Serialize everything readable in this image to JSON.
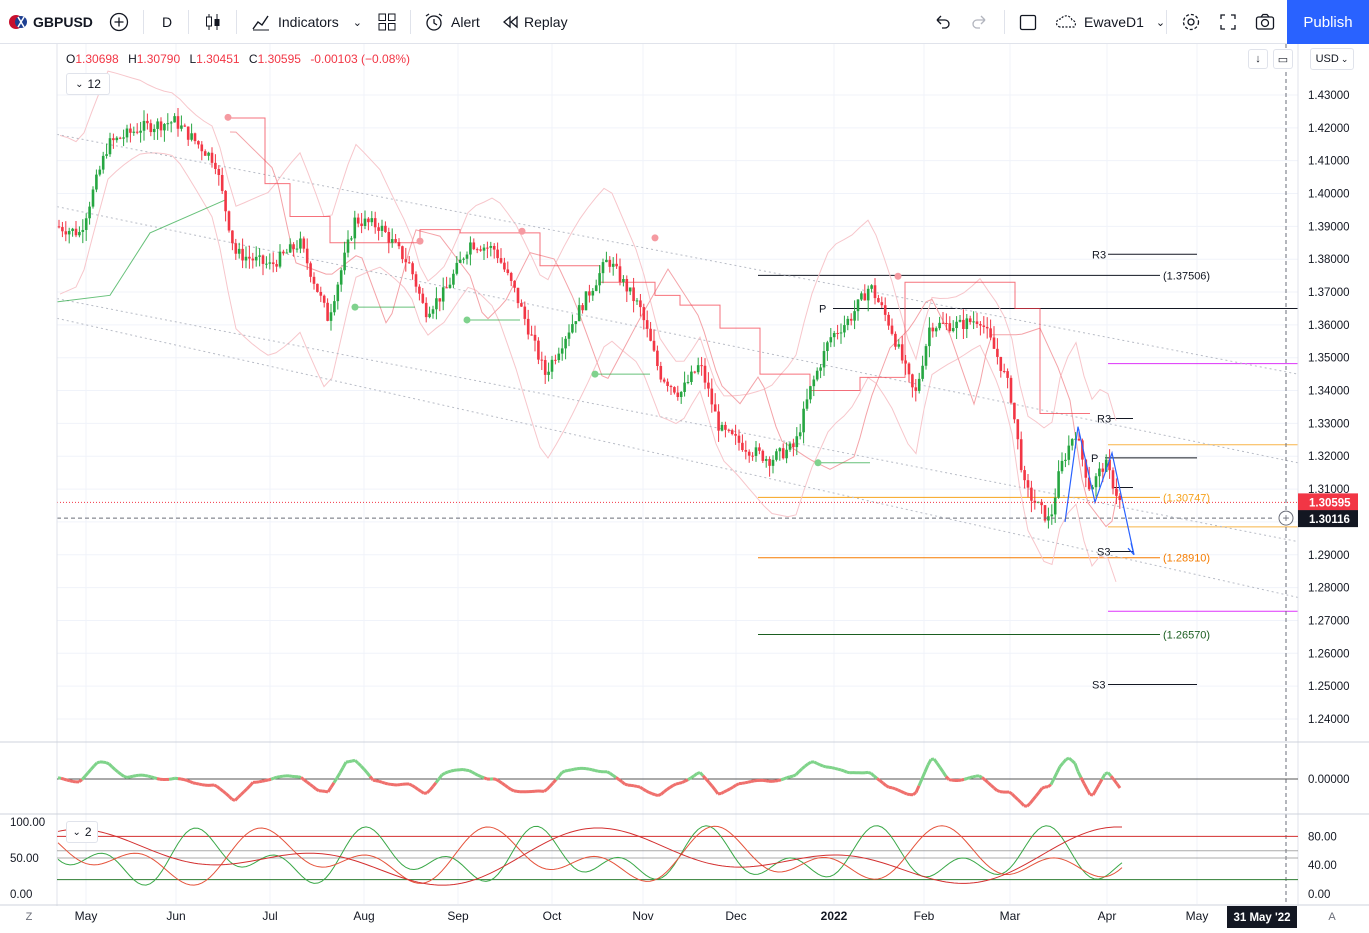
{
  "toolbar": {
    "symbol": "GBPUSD",
    "interval": "D",
    "indicators_label": "Indicators",
    "alert_label": "Alert",
    "replay_label": "Replay",
    "layout_name": "EwaveD1",
    "publish_label": "Publish"
  },
  "legend": {
    "open_label": "O",
    "open": "1.30698",
    "high_label": "H",
    "high": "1.30790",
    "low_label": "L",
    "low": "1.30451",
    "close_label": "C",
    "close": "1.30595",
    "change": "-0.00103 (−0.08%)",
    "collapse_count": "12"
  },
  "currency": "USD",
  "sub2_count": "2",
  "chart_data": {
    "type": "candlestick",
    "price_axis": {
      "ticks": [
        "1.43000",
        "1.42000",
        "1.41000",
        "1.40000",
        "1.39000",
        "1.38000",
        "1.37000",
        "1.36000",
        "1.35000",
        "1.34000",
        "1.33000",
        "1.32000",
        "1.31000",
        "1.30000",
        "1.29000",
        "1.28000",
        "1.27000",
        "1.26000",
        "1.25000",
        "1.24000"
      ],
      "ylim": [
        1.235,
        1.438
      ]
    },
    "time_axis": {
      "ticks": [
        "May",
        "Jun",
        "Jul",
        "Aug",
        "Sep",
        "Oct",
        "Nov",
        "Dec",
        "2022",
        "Feb",
        "Mar",
        "Apr",
        "May"
      ],
      "cursor_label": "31 May '22"
    },
    "last_price": "1.30595",
    "crosshair_price": "1.30116",
    "levels": [
      {
        "label": "R3",
        "value": 1.3815
      },
      {
        "label": "(1.37506)",
        "value": 1.37506
      },
      {
        "label": "P",
        "value": 1.365
      },
      {
        "label": "R3",
        "value": 1.3315
      },
      {
        "label": "P",
        "value": 1.3195
      },
      {
        "label": "(1.30747)",
        "value": 1.30747
      },
      {
        "label": "S3",
        "value": 1.291
      },
      {
        "label": "(1.28910)",
        "value": 1.2891
      },
      {
        "label": "(1.26570)",
        "value": 1.2657
      },
      {
        "label": "S3",
        "value": 1.2505
      }
    ],
    "indicator1": {
      "ticks": [
        "0.00000"
      ],
      "zero": 0
    },
    "indicator2": {
      "left_ticks": [
        "100.00",
        "50.00",
        "0.00"
      ],
      "right_ticks": [
        "80.00",
        "40.00",
        "0.00"
      ],
      "overbought": 80,
      "oversold": 20
    },
    "colors": {
      "up": "#26a641",
      "down": "#f23645",
      "accent": "#2962ff"
    },
    "bottom_left_label": "Z",
    "bottom_right_label": "A"
  }
}
